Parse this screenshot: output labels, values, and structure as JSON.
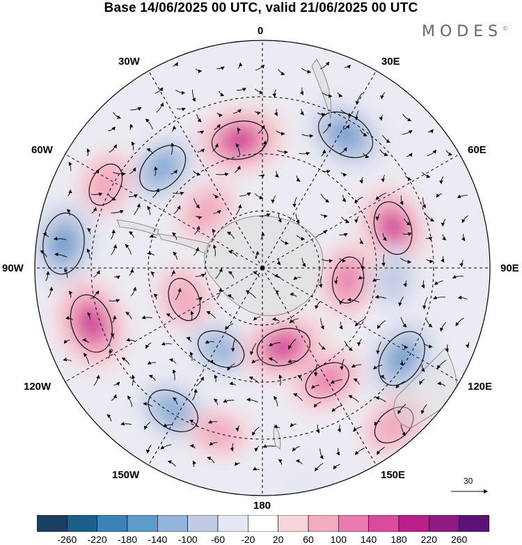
{
  "title": "Base 14/06/2025 00 UTC, valid 21/06/2025 00 UTC",
  "brand": "MODES",
  "brand_mark": "©",
  "lon_labels": {
    "n0": "0",
    "e30": "30E",
    "e60": "60E",
    "e90": "90E",
    "e120": "120E",
    "e150": "150E",
    "s180": "180",
    "w150": "150W",
    "w120": "120W",
    "w90": "90W",
    "w60": "60W",
    "w30": "30W"
  },
  "vector_scale_label": "30",
  "colorbar": {
    "colors": [
      "#1b3f5e",
      "#1d5f8c",
      "#3b82b9",
      "#5b9ccd",
      "#93b4db",
      "#c2cbe4",
      "#e6e8f3",
      "#ffffff",
      "#f8d5d8",
      "#f2acc0",
      "#e97bae",
      "#dc4a9e",
      "#bb1f8a",
      "#8f1a80",
      "#5a1477"
    ],
    "ticks": [
      "-260",
      "-220",
      "-180",
      "-140",
      "-100",
      "-60",
      "-20",
      "20",
      "60",
      "100",
      "140",
      "180",
      "220",
      "260"
    ]
  },
  "anomaly_centers": [
    {
      "lon": -10,
      "r": 0.57,
      "value": 200
    },
    {
      "lon": -45,
      "r": 0.62,
      "value": -180
    },
    {
      "lon": 32,
      "r": 0.69,
      "value": -220
    },
    {
      "lon": -62,
      "r": 0.78,
      "value": 100
    },
    {
      "lon": -45,
      "r": 0.35,
      "value": 80
    },
    {
      "lon": -83,
      "r": 0.88,
      "value": -240
    },
    {
      "lon": 73,
      "r": 0.6,
      "value": 180
    },
    {
      "lon": 98,
      "r": 0.38,
      "value": 120
    },
    {
      "lon": 95,
      "r": 0.58,
      "value": -80
    },
    {
      "lon": -108,
      "r": 0.79,
      "value": 220
    },
    {
      "lon": -112,
      "r": 0.37,
      "value": 100
    },
    {
      "lon": 123,
      "r": 0.73,
      "value": -220
    },
    {
      "lon": -148,
      "r": 0.74,
      "value": -180
    },
    {
      "lon": -153,
      "r": 0.4,
      "value": -140
    },
    {
      "lon": 165,
      "r": 0.36,
      "value": 180
    },
    {
      "lon": 150,
      "r": 0.57,
      "value": 120
    },
    {
      "lon": 140,
      "r": 0.9,
      "value": 100
    },
    {
      "lon": 170,
      "r": 0.96,
      "value": -60
    },
    {
      "lon": -165,
      "r": 0.75,
      "value": 60
    }
  ]
}
